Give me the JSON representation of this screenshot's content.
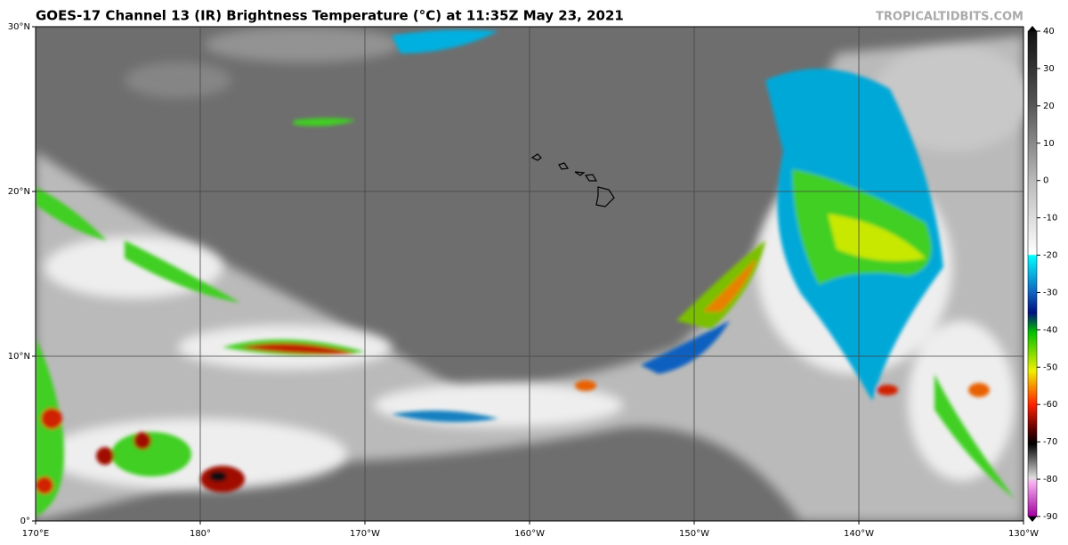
{
  "header": {
    "title": "GOES-17 Channel 13 (IR) Brightness Temperature (°C) at 11:35Z May 23, 2021",
    "source": "TROPICALTIDBITS.COM"
  },
  "map": {
    "lon_labels": [
      "170°E",
      "180°",
      "170°W",
      "160°W",
      "150°W",
      "140°W",
      "130°W"
    ],
    "lat_labels": [
      "30°N",
      "20°N",
      "10°N",
      "0°"
    ]
  },
  "colorbar": {
    "ticks": [
      40,
      30,
      20,
      10,
      0,
      -10,
      -20,
      -30,
      -40,
      -50,
      -60,
      -70,
      -80,
      -90
    ],
    "range": [
      40,
      -90
    ]
  }
}
